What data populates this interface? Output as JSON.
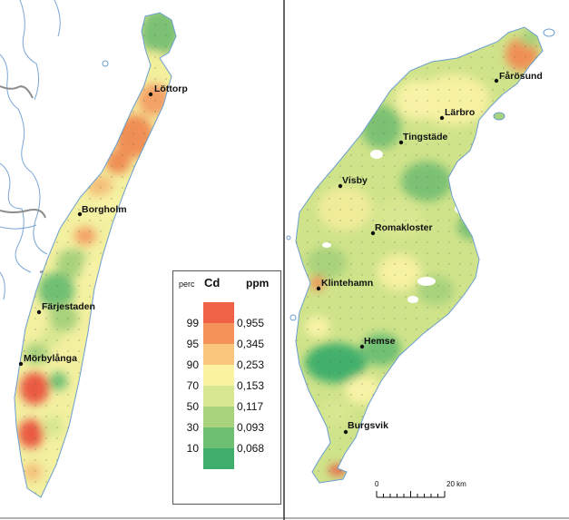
{
  "places": [
    {
      "name": "Löttorp"
    },
    {
      "name": "Borgholm"
    },
    {
      "name": "Färjestaden"
    },
    {
      "name": "Mörbylånga"
    },
    {
      "name": "Fårösund"
    },
    {
      "name": "Lärbro"
    },
    {
      "name": "Tingstäde"
    },
    {
      "name": "Visby"
    },
    {
      "name": "Romakloster"
    },
    {
      "name": "Klintehamn"
    },
    {
      "name": "Hemse"
    },
    {
      "name": "Burgsvik"
    }
  ],
  "legend": {
    "perc_label": "perc",
    "element_label": "Cd",
    "unit_label": "ppm",
    "classes": [
      {
        "perc": "99",
        "value": "0,955",
        "color": "#ef6248"
      },
      {
        "perc": "95",
        "value": "0,345",
        "color": "#f4925a"
      },
      {
        "perc": "90",
        "value": "0,253",
        "color": "#f8c67c"
      },
      {
        "perc": "70",
        "value": "0,153",
        "color": "#fbf3a2"
      },
      {
        "perc": "50",
        "value": "0,117",
        "color": "#d8e791"
      },
      {
        "perc": "30",
        "value": "0,093",
        "color": "#a8d27c"
      },
      {
        "perc": "10",
        "value": "0,068",
        "color": "#6fbf73"
      },
      {
        "perc": "",
        "value": "",
        "color": "#3fae6c"
      }
    ]
  },
  "scale": {
    "start": "0",
    "end": "20 km"
  }
}
